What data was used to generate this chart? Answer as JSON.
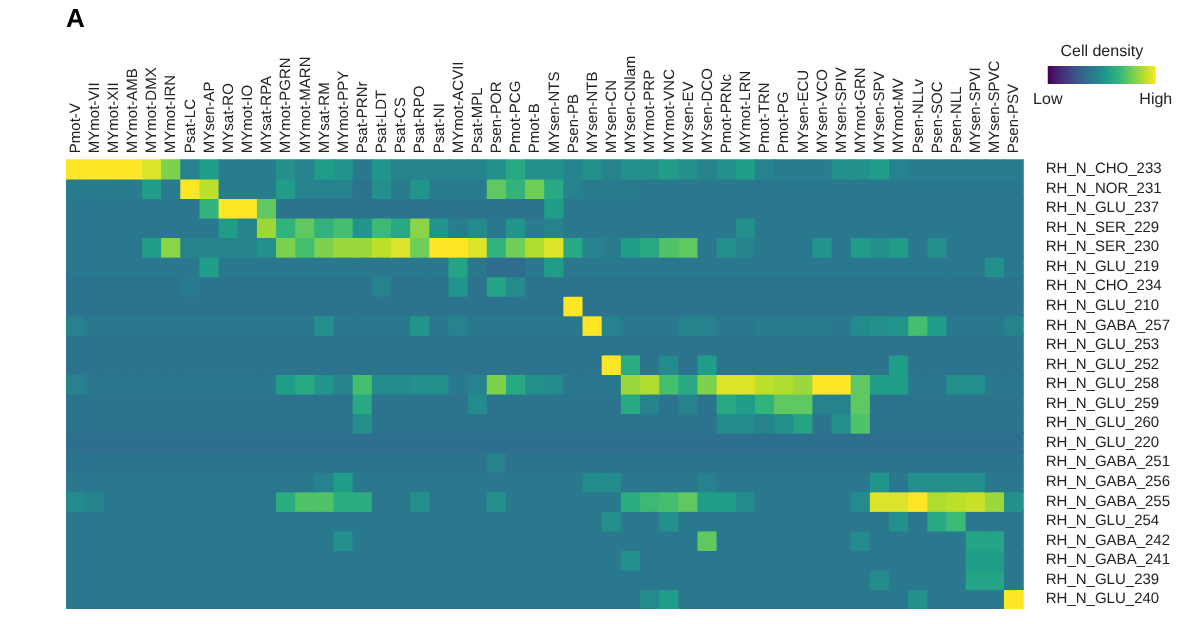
{
  "chart_data": {
    "type": "heatmap",
    "title": "A",
    "clabel": "Cell density",
    "categories": [
      "Pmot-V",
      "MYmot-VII",
      "MYmot-XII",
      "MYmot-AMB",
      "MYmot-DMX",
      "MYmot-IRN",
      "Psat-LC",
      "MYsen-AP",
      "MYsat-RO",
      "MYmot-IO",
      "MYsat-RPA",
      "MYmot-PGRN",
      "MYmot-MARN",
      "MYsat-RM",
      "MYmot-PPY",
      "Psat-PRNr",
      "Psat-LDT",
      "Psat-CS",
      "Psat-RPO",
      "Psat-NI",
      "MYmot-ACVII",
      "Psat-MPL",
      "Psen-POR",
      "Pmot-PCG",
      "Pmot-B",
      "MYsen-NTS",
      "Psen-PB",
      "MYsen-NTB",
      "MYsen-CN",
      "MYsen-CNlam",
      "MYmot-PRP",
      "MYmot-VNC",
      "MYsen-EV",
      "MYsen-DCO",
      "Pmot-PRNc",
      "MYmot-LRN",
      "Pmot-TRN",
      "Pmot-PG",
      "MYsen-ECU",
      "MYsen-VCO",
      "MYsen-SPIV",
      "MYmot-GRN",
      "MYsen-SPV",
      "MYmot-MV",
      "Psen-NLLv",
      "Psen-SOC",
      "Psen-NLL",
      "MYsen-SPVI",
      "MYsen-SPVC",
      "Psen-PSV"
    ],
    "y_categories": [
      "RH_N_CHO_233",
      "RH_N_NOR_231",
      "RH_N_GLU_237",
      "RH_N_SER_229",
      "RH_N_SER_230",
      "RH_N_GLU_219",
      "RH_N_CHO_234",
      "RH_N_GLU_210",
      "RH_N_GABA_257",
      "RH_N_GLU_253",
      "RH_N_GLU_252",
      "RH_N_GLU_258",
      "RH_N_GLU_259",
      "RH_N_GLU_260",
      "RH_N_GLU_220",
      "RH_N_GABA_251",
      "RH_N_GABA_256",
      "RH_N_GABA_255",
      "RH_N_GLU_254",
      "RH_N_GABA_242",
      "RH_N_GABA_241",
      "RH_N_GLU_239",
      "RH_N_GLU_240"
    ],
    "clim": [
      0,
      1
    ],
    "cticks": [
      {
        "value": 0,
        "label": "Low"
      },
      {
        "value": 1,
        "label": "High"
      }
    ],
    "cells": [
      [
        1,
        1,
        1,
        1,
        0.95,
        0.8,
        0.45,
        0.55,
        0.42,
        0.42,
        0.42,
        0.5,
        0.45,
        0.55,
        0.52,
        0.4,
        0.52,
        0.45,
        0.45,
        0.45,
        0.45,
        0.45,
        0.5,
        0.6,
        0.5,
        0.5,
        0.45,
        0.5,
        0.45,
        0.5,
        0.5,
        0.55,
        0.5,
        0.45,
        0.5,
        0.55,
        0.45,
        0.42,
        0.42,
        0.42,
        0.5,
        0.5,
        0.55,
        0.45,
        0.42,
        0.42,
        0.42,
        0.42,
        0.42,
        0.42
      ],
      [
        0.42,
        0.42,
        0.42,
        0.42,
        0.55,
        0.42,
        1,
        0.9,
        0.42,
        0.42,
        0.42,
        0.55,
        0.45,
        0.45,
        0.45,
        0.38,
        0.5,
        0.42,
        0.52,
        0.42,
        0.42,
        0.42,
        0.75,
        0.65,
        0.78,
        0.6,
        0.45,
        0.42,
        0.42,
        0.42,
        0.4,
        0.4,
        0.4,
        0.4,
        0.4,
        0.4,
        0.4,
        0.4,
        0.4,
        0.4,
        0.4,
        0.4,
        0.4,
        0.4,
        0.4,
        0.4,
        0.4,
        0.4,
        0.4,
        0.4
      ],
      [
        0.4,
        0.4,
        0.4,
        0.4,
        0.4,
        0.4,
        0.4,
        0.65,
        1,
        1,
        0.75,
        0.38,
        0.38,
        0.38,
        0.38,
        0.38,
        0.38,
        0.38,
        0.38,
        0.38,
        0.38,
        0.38,
        0.38,
        0.38,
        0.38,
        0.55,
        0.4,
        0.4,
        0.4,
        0.4,
        0.4,
        0.4,
        0.4,
        0.4,
        0.4,
        0.4,
        0.4,
        0.4,
        0.4,
        0.4,
        0.4,
        0.4,
        0.4,
        0.4,
        0.4,
        0.4,
        0.4,
        0.4,
        0.4,
        0.4
      ],
      [
        0.4,
        0.4,
        0.4,
        0.4,
        0.4,
        0.4,
        0.4,
        0.4,
        0.55,
        0.45,
        0.85,
        0.65,
        0.75,
        0.65,
        0.7,
        0.52,
        0.68,
        0.6,
        0.82,
        0.52,
        0.42,
        0.48,
        0.4,
        0.52,
        0.42,
        0.45,
        0.4,
        0.4,
        0.4,
        0.4,
        0.4,
        0.4,
        0.4,
        0.4,
        0.4,
        0.5,
        0.4,
        0.4,
        0.4,
        0.4,
        0.4,
        0.4,
        0.4,
        0.4,
        0.4,
        0.4,
        0.4,
        0.4,
        0.4,
        0.4
      ],
      [
        0.4,
        0.4,
        0.4,
        0.4,
        0.55,
        0.82,
        0.45,
        0.45,
        0.45,
        0.45,
        0.5,
        0.8,
        0.7,
        0.8,
        0.85,
        0.85,
        0.9,
        0.95,
        0.78,
        1,
        1,
        0.95,
        0.65,
        0.78,
        0.88,
        0.95,
        0.6,
        0.45,
        0.42,
        0.55,
        0.6,
        0.72,
        0.75,
        0.4,
        0.5,
        0.45,
        0.4,
        0.4,
        0.4,
        0.52,
        0.4,
        0.55,
        0.5,
        0.55,
        0.4,
        0.5,
        0.4,
        0.4,
        0.4,
        0.4
      ],
      [
        0.4,
        0.4,
        0.4,
        0.4,
        0.4,
        0.4,
        0.4,
        0.55,
        0.4,
        0.4,
        0.4,
        0.4,
        0.4,
        0.4,
        0.4,
        0.4,
        0.4,
        0.4,
        0.4,
        0.4,
        0.58,
        0.4,
        0.35,
        0.35,
        0.4,
        0.55,
        0.4,
        0.4,
        0.4,
        0.4,
        0.4,
        0.4,
        0.4,
        0.4,
        0.4,
        0.4,
        0.4,
        0.4,
        0.4,
        0.4,
        0.4,
        0.4,
        0.4,
        0.4,
        0.4,
        0.4,
        0.4,
        0.4,
        0.5,
        0.4
      ],
      [
        0.38,
        0.38,
        0.38,
        0.38,
        0.38,
        0.38,
        0.42,
        0.38,
        0.38,
        0.38,
        0.38,
        0.38,
        0.38,
        0.38,
        0.38,
        0.38,
        0.45,
        0.38,
        0.38,
        0.38,
        0.52,
        0.38,
        0.58,
        0.48,
        0.38,
        0.38,
        0.38,
        0.38,
        0.38,
        0.38,
        0.38,
        0.38,
        0.38,
        0.38,
        0.38,
        0.38,
        0.38,
        0.38,
        0.38,
        0.38,
        0.38,
        0.38,
        0.38,
        0.38,
        0.38,
        0.38,
        0.38,
        0.38,
        0.38,
        0.38
      ],
      [
        0.38,
        0.38,
        0.38,
        0.38,
        0.38,
        0.38,
        0.38,
        0.38,
        0.38,
        0.38,
        0.38,
        0.38,
        0.38,
        0.38,
        0.38,
        0.38,
        0.38,
        0.38,
        0.38,
        0.38,
        0.38,
        0.38,
        0.38,
        0.38,
        0.38,
        0.38,
        1,
        0.38,
        0.38,
        0.38,
        0.38,
        0.38,
        0.38,
        0.38,
        0.38,
        0.38,
        0.38,
        0.38,
        0.38,
        0.38,
        0.38,
        0.38,
        0.38,
        0.38,
        0.38,
        0.38,
        0.38,
        0.38,
        0.38,
        0.38
      ],
      [
        0.45,
        0.4,
        0.4,
        0.4,
        0.4,
        0.4,
        0.4,
        0.4,
        0.4,
        0.4,
        0.4,
        0.4,
        0.4,
        0.5,
        0.4,
        0.4,
        0.4,
        0.4,
        0.52,
        0.4,
        0.45,
        0.4,
        0.4,
        0.4,
        0.4,
        0.4,
        0.4,
        1,
        0.45,
        0.4,
        0.4,
        0.4,
        0.45,
        0.45,
        0.4,
        0.4,
        0.42,
        0.42,
        0.42,
        0.42,
        0.4,
        0.48,
        0.5,
        0.52,
        0.7,
        0.55,
        0.4,
        0.4,
        0.4,
        0.45
      ],
      [
        0.38,
        0.38,
        0.38,
        0.38,
        0.38,
        0.38,
        0.38,
        0.38,
        0.38,
        0.38,
        0.38,
        0.38,
        0.38,
        0.38,
        0.38,
        0.38,
        0.38,
        0.38,
        0.38,
        0.38,
        0.38,
        0.38,
        0.38,
        0.38,
        0.38,
        0.38,
        0.38,
        0.38,
        0.38,
        0.38,
        0.38,
        0.38,
        0.38,
        0.38,
        0.38,
        0.38,
        0.38,
        0.38,
        0.38,
        0.38,
        0.38,
        0.38,
        0.38,
        0.38,
        0.38,
        0.38,
        0.38,
        0.38,
        0.38,
        0.38
      ],
      [
        0.38,
        0.38,
        0.38,
        0.38,
        0.38,
        0.38,
        0.38,
        0.38,
        0.38,
        0.38,
        0.38,
        0.38,
        0.38,
        0.38,
        0.38,
        0.38,
        0.38,
        0.38,
        0.38,
        0.38,
        0.38,
        0.38,
        0.38,
        0.38,
        0.38,
        0.38,
        0.38,
        0.38,
        1,
        0.62,
        0.38,
        0.48,
        0.38,
        0.55,
        0.38,
        0.38,
        0.38,
        0.38,
        0.38,
        0.38,
        0.38,
        0.38,
        0.38,
        0.55,
        0.38,
        0.38,
        0.38,
        0.38,
        0.38,
        0.38
      ],
      [
        0.45,
        0.4,
        0.4,
        0.4,
        0.4,
        0.4,
        0.4,
        0.4,
        0.4,
        0.4,
        0.4,
        0.55,
        0.6,
        0.52,
        0.45,
        0.7,
        0.48,
        0.48,
        0.5,
        0.5,
        0.4,
        0.45,
        0.8,
        0.6,
        0.5,
        0.48,
        0.4,
        0.4,
        0.4,
        0.85,
        0.88,
        0.7,
        0.6,
        0.8,
        0.95,
        0.95,
        0.9,
        0.88,
        0.85,
        1,
        1,
        0.75,
        0.55,
        0.55,
        0.4,
        0.4,
        0.5,
        0.5,
        0.4,
        0.4
      ],
      [
        0.38,
        0.38,
        0.38,
        0.38,
        0.38,
        0.38,
        0.38,
        0.38,
        0.38,
        0.38,
        0.38,
        0.38,
        0.38,
        0.38,
        0.38,
        0.6,
        0.38,
        0.38,
        0.38,
        0.38,
        0.38,
        0.48,
        0.38,
        0.38,
        0.38,
        0.38,
        0.38,
        0.38,
        0.38,
        0.6,
        0.45,
        0.38,
        0.45,
        0.38,
        0.6,
        0.55,
        0.65,
        0.75,
        0.75,
        0.45,
        0.45,
        0.75,
        0.38,
        0.38,
        0.38,
        0.38,
        0.38,
        0.38,
        0.38,
        0.38
      ],
      [
        0.38,
        0.38,
        0.38,
        0.38,
        0.38,
        0.38,
        0.38,
        0.38,
        0.38,
        0.38,
        0.38,
        0.38,
        0.38,
        0.38,
        0.38,
        0.5,
        0.38,
        0.38,
        0.38,
        0.38,
        0.38,
        0.38,
        0.38,
        0.38,
        0.38,
        0.38,
        0.38,
        0.38,
        0.38,
        0.38,
        0.38,
        0.38,
        0.38,
        0.38,
        0.48,
        0.48,
        0.45,
        0.5,
        0.58,
        0.38,
        0.5,
        0.72,
        0.38,
        0.38,
        0.38,
        0.38,
        0.38,
        0.38,
        0.38,
        0.38
      ],
      [
        0.36,
        0.36,
        0.36,
        0.36,
        0.36,
        0.36,
        0.36,
        0.36,
        0.36,
        0.36,
        0.36,
        0.36,
        0.36,
        0.36,
        0.36,
        0.36,
        0.36,
        0.36,
        0.36,
        0.36,
        0.36,
        0.36,
        0.36,
        0.36,
        0.36,
        0.36,
        0.36,
        0.36,
        0.36,
        0.36,
        0.36,
        0.36,
        0.36,
        0.36,
        0.36,
        0.36,
        0.36,
        0.36,
        0.36,
        0.36,
        0.36,
        0.36,
        0.36,
        0.36,
        0.36,
        0.36,
        0.36,
        0.36,
        0.36,
        0.36
      ],
      [
        0.38,
        0.38,
        0.38,
        0.38,
        0.38,
        0.38,
        0.38,
        0.38,
        0.38,
        0.38,
        0.38,
        0.38,
        0.38,
        0.38,
        0.38,
        0.38,
        0.38,
        0.38,
        0.38,
        0.38,
        0.38,
        0.38,
        0.45,
        0.38,
        0.38,
        0.38,
        0.38,
        0.38,
        0.38,
        0.38,
        0.38,
        0.38,
        0.38,
        0.38,
        0.38,
        0.38,
        0.38,
        0.38,
        0.38,
        0.38,
        0.38,
        0.38,
        0.38,
        0.38,
        0.38,
        0.38,
        0.38,
        0.38,
        0.38,
        0.38
      ],
      [
        0.4,
        0.4,
        0.4,
        0.4,
        0.4,
        0.4,
        0.4,
        0.4,
        0.4,
        0.4,
        0.4,
        0.4,
        0.4,
        0.45,
        0.55,
        0.4,
        0.4,
        0.4,
        0.4,
        0.4,
        0.4,
        0.4,
        0.4,
        0.4,
        0.4,
        0.4,
        0.4,
        0.48,
        0.48,
        0.4,
        0.4,
        0.4,
        0.4,
        0.45,
        0.4,
        0.4,
        0.4,
        0.4,
        0.4,
        0.4,
        0.4,
        0.4,
        0.52,
        0.4,
        0.5,
        0.5,
        0.5,
        0.5,
        0.4,
        0.4
      ],
      [
        0.48,
        0.45,
        0.4,
        0.4,
        0.4,
        0.4,
        0.4,
        0.4,
        0.4,
        0.4,
        0.4,
        0.62,
        0.72,
        0.72,
        0.62,
        0.62,
        0.4,
        0.4,
        0.5,
        0.4,
        0.4,
        0.4,
        0.5,
        0.4,
        0.4,
        0.4,
        0.4,
        0.4,
        0.4,
        0.62,
        0.68,
        0.7,
        0.75,
        0.55,
        0.55,
        0.48,
        0.4,
        0.4,
        0.4,
        0.4,
        0.4,
        0.48,
        0.95,
        0.95,
        1,
        0.88,
        0.9,
        0.92,
        0.85,
        0.5
      ],
      [
        0.4,
        0.4,
        0.4,
        0.4,
        0.4,
        0.4,
        0.4,
        0.4,
        0.4,
        0.4,
        0.4,
        0.4,
        0.4,
        0.4,
        0.4,
        0.4,
        0.4,
        0.4,
        0.4,
        0.4,
        0.4,
        0.4,
        0.4,
        0.4,
        0.4,
        0.4,
        0.4,
        0.4,
        0.5,
        0.4,
        0.4,
        0.5,
        0.4,
        0.4,
        0.4,
        0.4,
        0.4,
        0.4,
        0.4,
        0.4,
        0.4,
        0.4,
        0.4,
        0.5,
        0.4,
        0.6,
        0.68,
        0.4,
        0.4,
        0.4
      ],
      [
        0.4,
        0.4,
        0.4,
        0.4,
        0.4,
        0.4,
        0.4,
        0.4,
        0.4,
        0.4,
        0.4,
        0.4,
        0.4,
        0.4,
        0.5,
        0.4,
        0.4,
        0.4,
        0.4,
        0.4,
        0.4,
        0.4,
        0.4,
        0.4,
        0.4,
        0.4,
        0.4,
        0.4,
        0.4,
        0.4,
        0.4,
        0.4,
        0.4,
        0.75,
        0.4,
        0.4,
        0.4,
        0.4,
        0.4,
        0.4,
        0.4,
        0.48,
        0.4,
        0.4,
        0.4,
        0.4,
        0.4,
        0.58,
        0.58,
        0.4
      ],
      [
        0.4,
        0.4,
        0.4,
        0.4,
        0.4,
        0.4,
        0.4,
        0.4,
        0.4,
        0.4,
        0.4,
        0.4,
        0.4,
        0.4,
        0.4,
        0.4,
        0.4,
        0.4,
        0.4,
        0.4,
        0.4,
        0.4,
        0.4,
        0.4,
        0.4,
        0.4,
        0.4,
        0.4,
        0.4,
        0.5,
        0.4,
        0.4,
        0.4,
        0.4,
        0.4,
        0.4,
        0.4,
        0.4,
        0.4,
        0.4,
        0.4,
        0.4,
        0.4,
        0.4,
        0.4,
        0.4,
        0.4,
        0.55,
        0.55,
        0.4
      ],
      [
        0.4,
        0.4,
        0.4,
        0.4,
        0.4,
        0.4,
        0.4,
        0.4,
        0.4,
        0.4,
        0.4,
        0.4,
        0.4,
        0.4,
        0.4,
        0.4,
        0.4,
        0.4,
        0.4,
        0.4,
        0.4,
        0.4,
        0.4,
        0.4,
        0.4,
        0.4,
        0.4,
        0.4,
        0.4,
        0.4,
        0.4,
        0.4,
        0.4,
        0.4,
        0.4,
        0.4,
        0.4,
        0.4,
        0.4,
        0.4,
        0.4,
        0.4,
        0.48,
        0.4,
        0.4,
        0.4,
        0.4,
        0.58,
        0.58,
        0.4
      ],
      [
        0.4,
        0.4,
        0.4,
        0.4,
        0.4,
        0.4,
        0.4,
        0.4,
        0.4,
        0.4,
        0.4,
        0.4,
        0.4,
        0.4,
        0.4,
        0.4,
        0.4,
        0.4,
        0.4,
        0.4,
        0.4,
        0.4,
        0.4,
        0.4,
        0.4,
        0.4,
        0.4,
        0.4,
        0.4,
        0.4,
        0.48,
        0.55,
        0.4,
        0.4,
        0.4,
        0.4,
        0.4,
        0.4,
        0.4,
        0.4,
        0.4,
        0.4,
        0.4,
        0.4,
        0.5,
        0.4,
        0.4,
        0.4,
        0.4,
        1
      ]
    ]
  }
}
